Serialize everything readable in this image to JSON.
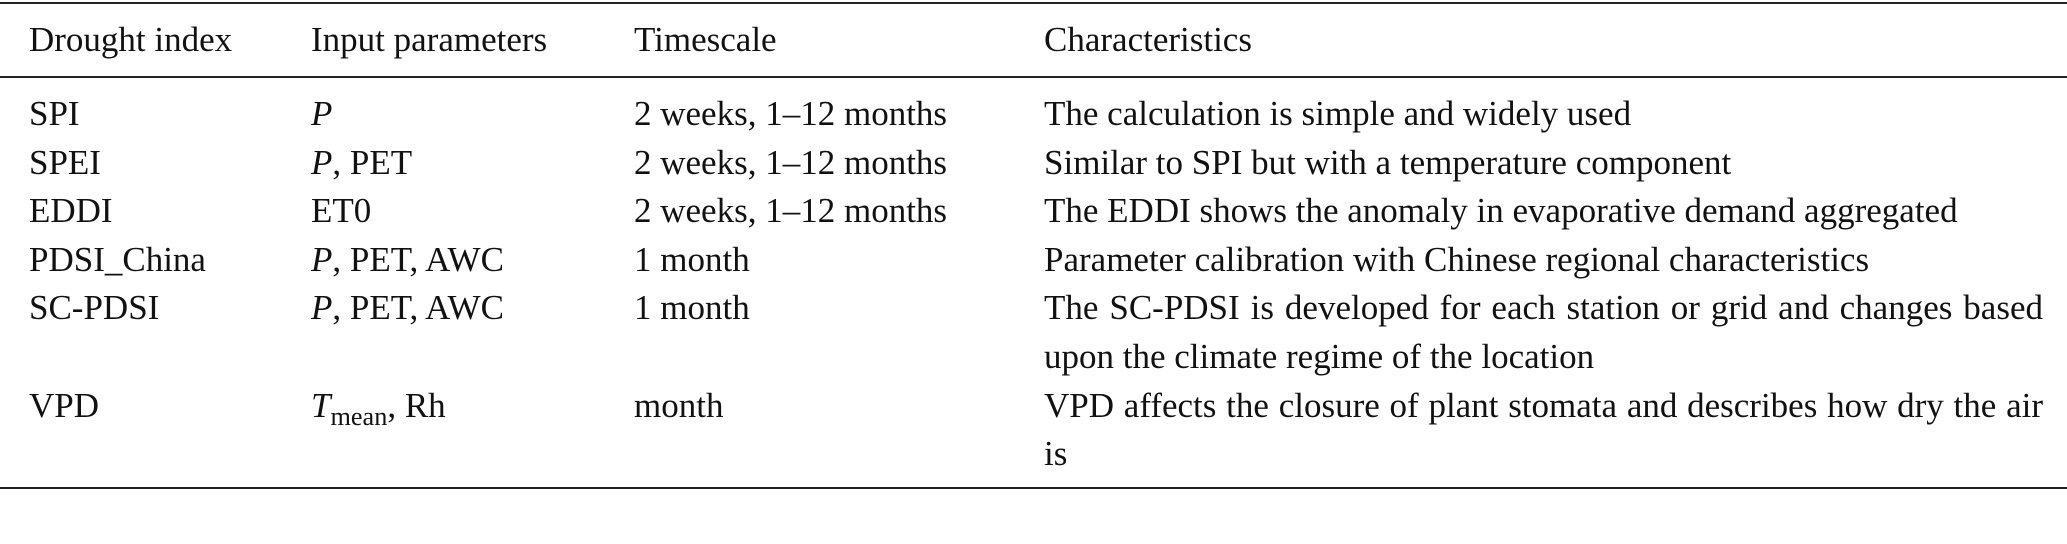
{
  "table": {
    "header": [
      "Drought index",
      "Input parameters",
      "Timescale",
      "Characteristics"
    ],
    "rows": [
      [
        "SPI",
        [
          {
            "text": "P",
            "italic": true
          }
        ],
        "2 weeks, 1–12 months",
        "The calculation is simple and widely used"
      ],
      [
        "SPEI",
        [
          {
            "text": "P",
            "italic": true
          },
          {
            "text": ", PET"
          }
        ],
        "2 weeks, 1–12 months",
        "Similar to SPI but with a temperature component"
      ],
      [
        "EDDI",
        [
          {
            "text": "ET0"
          }
        ],
        "2 weeks, 1–12 months",
        "The EDDI shows the anomaly in evaporative demand aggregated"
      ],
      [
        "PDSI_China",
        [
          {
            "text": "P",
            "italic": true
          },
          {
            "text": ", PET, AWC"
          }
        ],
        "1 month",
        "Parameter calibration with Chinese regional characteristics"
      ],
      [
        "SC-PDSI",
        [
          {
            "text": "P",
            "italic": true
          },
          {
            "text": ", PET, AWC"
          }
        ],
        "1 month",
        "The SC-PDSI is developed for each station or grid and changes based upon the climate regime of the location"
      ],
      [
        "VPD",
        [
          {
            "text": "T",
            "italic": true
          },
          {
            "text": "mean",
            "sub": true
          },
          {
            "text": ", Rh"
          }
        ],
        "month",
        "VPD affects the closure of plant stomata and describes how dry the air is"
      ]
    ]
  }
}
